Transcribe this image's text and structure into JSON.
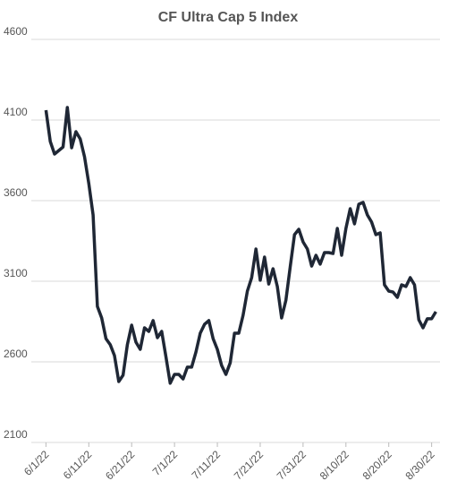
{
  "chart_data": {
    "type": "line",
    "title": "CF Ultra Cap 5 Index",
    "x": [
      "6/1/22",
      "6/2/22",
      "6/3/22",
      "6/4/22",
      "6/5/22",
      "6/6/22",
      "6/7/22",
      "6/8/22",
      "6/9/22",
      "6/10/22",
      "6/11/22",
      "6/12/22",
      "6/13/22",
      "6/14/22",
      "6/15/22",
      "6/16/22",
      "6/17/22",
      "6/18/22",
      "6/19/22",
      "6/20/22",
      "6/21/22",
      "6/22/22",
      "6/23/22",
      "6/24/22",
      "6/25/22",
      "6/26/22",
      "6/27/22",
      "6/28/22",
      "6/29/22",
      "6/30/22",
      "7/1/22",
      "7/2/22",
      "7/3/22",
      "7/4/22",
      "7/5/22",
      "7/6/22",
      "7/7/22",
      "7/8/22",
      "7/9/22",
      "7/10/22",
      "7/11/22",
      "7/12/22",
      "7/13/22",
      "7/14/22",
      "7/15/22",
      "7/16/22",
      "7/17/22",
      "7/18/22",
      "7/19/22",
      "7/20/22",
      "7/21/22",
      "7/22/22",
      "7/23/22",
      "7/24/22",
      "7/25/22",
      "7/26/22",
      "7/27/22",
      "7/28/22",
      "7/29/22",
      "7/30/22",
      "7/31/22",
      "8/1/22",
      "8/2/22",
      "8/3/22",
      "8/4/22",
      "8/5/22",
      "8/6/22",
      "8/7/22",
      "8/8/22",
      "8/9/22",
      "8/10/22",
      "8/11/22",
      "8/12/22",
      "8/13/22",
      "8/14/22",
      "8/15/22",
      "8/16/22",
      "8/17/22",
      "8/18/22",
      "8/19/22",
      "8/20/22",
      "8/21/22",
      "8/22/22",
      "8/23/22",
      "8/24/22",
      "8/25/22",
      "8/26/22",
      "8/27/22",
      "8/28/22",
      "8/29/22",
      "8/30/22",
      "8/31/22"
    ],
    "series": [
      {
        "name": "CF Ultra Cap 5 Index",
        "color": "#1f2735",
        "values": [
          4161,
          3967,
          3889,
          3911,
          3933,
          4178,
          3928,
          4028,
          3983,
          3872,
          3706,
          3511,
          2944,
          2872,
          2744,
          2706,
          2639,
          2478,
          2517,
          2706,
          2828,
          2722,
          2678,
          2811,
          2789,
          2856,
          2750,
          2789,
          2633,
          2467,
          2522,
          2522,
          2494,
          2567,
          2567,
          2661,
          2778,
          2833,
          2856,
          2744,
          2678,
          2578,
          2522,
          2594,
          2778,
          2778,
          2889,
          3039,
          3122,
          3300,
          3106,
          3250,
          3083,
          3178,
          3067,
          2872,
          2983,
          3189,
          3389,
          3422,
          3344,
          3300,
          3194,
          3261,
          3206,
          3278,
          3278,
          3272,
          3428,
          3261,
          3428,
          3550,
          3456,
          3578,
          3589,
          3511,
          3467,
          3389,
          3400,
          3078,
          3039,
          3033,
          3000,
          3078,
          3067,
          3122,
          3078,
          2861,
          2811,
          2867,
          2867,
          2911
        ]
      }
    ],
    "xlim": [
      "5/29/22",
      "9/2/22"
    ],
    "xticks": [
      "6/1/22",
      "6/11/22",
      "6/21/22",
      "7/1/22",
      "7/11/22",
      "7/21/22",
      "7/31/22",
      "8/10/22",
      "8/20/22",
      "8/30/22"
    ],
    "ylim": [
      2100,
      4600
    ],
    "yticks": [
      2100,
      2600,
      3100,
      3600,
      4100,
      4600
    ],
    "grid": true
  }
}
